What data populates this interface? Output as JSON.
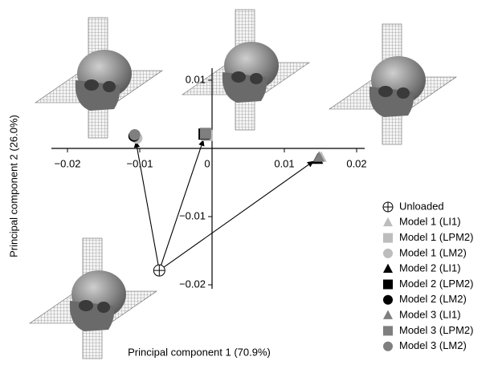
{
  "chart_data": {
    "type": "scatter",
    "xlabel": "Principal component 1 (70.9%)",
    "ylabel": "Principal component 2 (26.0%)",
    "xlim": [
      -0.02,
      0.02
    ],
    "ylim": [
      -0.02,
      0.01
    ],
    "xticks": [
      {
        "value": -0.02,
        "label": "−0.02"
      },
      {
        "value": -0.01,
        "label": "−0.01"
      },
      0,
      0.01,
      0.02
    ],
    "yticks": [
      {
        "value": -0.02,
        "label": "−0.02"
      },
      {
        "value": -0.01,
        "label": "−0.01"
      },
      0.01
    ],
    "series": [
      {
        "name": "Unloaded",
        "color": "#000000",
        "marker": "crosscircle",
        "x": [
          -0.0073
        ],
        "values": [
          -0.0179
        ]
      },
      {
        "name": "Model 1 (LI1)",
        "color": "#bdbdbd",
        "marker": "triangle",
        "x": [
          0.0151
        ],
        "values": [
          -0.0013
        ]
      },
      {
        "name": "Model 1 (LPM2)",
        "color": "#bdbdbd",
        "marker": "square",
        "x": [
          -0.0007
        ],
        "values": [
          0.0019
        ]
      },
      {
        "name": "Model 1 (LM2)",
        "color": "#bdbdbd",
        "marker": "circle",
        "x": [
          -0.0104
        ],
        "values": [
          0.0015
        ]
      },
      {
        "name": "Model 2 (LI1)",
        "color": "#000000",
        "marker": "triangle",
        "x": [
          0.0146
        ],
        "values": [
          -0.0016
        ]
      },
      {
        "name": "Model 2 (LPM2)",
        "color": "#000000",
        "marker": "square",
        "x": [
          -0.0011
        ],
        "values": [
          0.0021
        ]
      },
      {
        "name": "Model 2 (LM2)",
        "color": "#000000",
        "marker": "circle",
        "x": [
          -0.0108
        ],
        "values": [
          0.0018
        ]
      },
      {
        "name": "Model 3 (LI1)",
        "color": "#7f7f7f",
        "marker": "triangle",
        "x": [
          0.0148
        ],
        "values": [
          -0.0013
        ]
      },
      {
        "name": "Model 3 (LPM2)",
        "color": "#7f7f7f",
        "marker": "square",
        "x": [
          -0.0009
        ],
        "values": [
          0.0022
        ]
      },
      {
        "name": "Model 3 (LM2)",
        "color": "#7f7f7f",
        "marker": "circle",
        "x": [
          -0.0107
        ],
        "values": [
          0.002
        ]
      }
    ]
  }
}
